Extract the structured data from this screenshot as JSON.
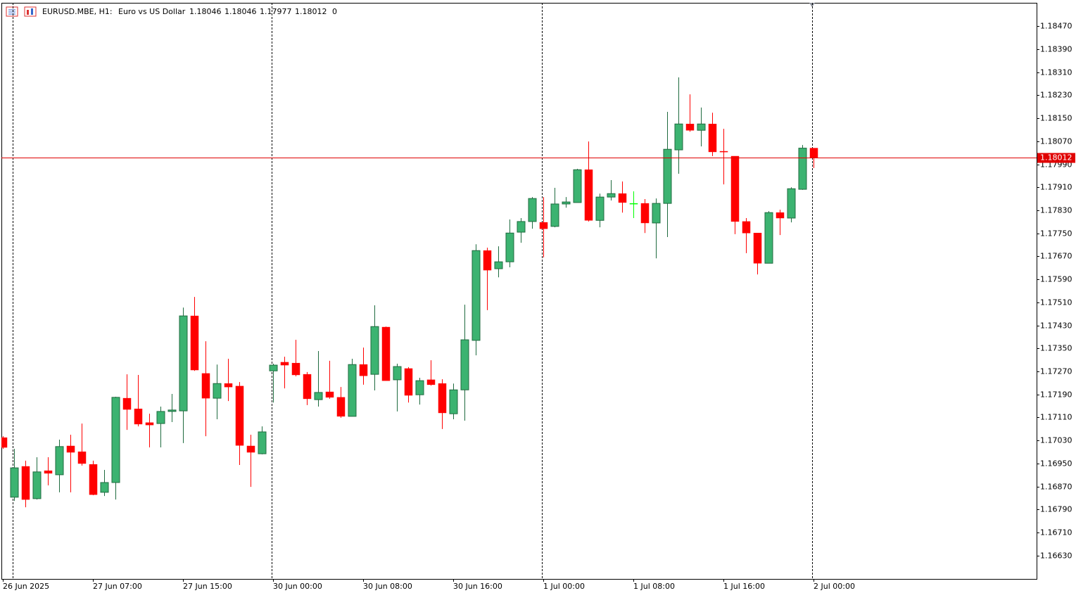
{
  "chart_data": {
    "type": "candlestick",
    "symbol": "EURUSD.MBE, H1:",
    "description": "Euro vs US Dollar",
    "info_extra": "0",
    "categories": [
      "26 Jun 2025",
      null,
      null,
      null,
      null,
      null,
      null,
      null,
      "27 Jun 07:00",
      null,
      null,
      null,
      null,
      null,
      null,
      null,
      "27 Jun 15:00",
      null,
      null,
      null,
      null,
      null,
      null,
      null,
      "30 Jun 00:00",
      null,
      null,
      null,
      null,
      null,
      null,
      null,
      "30 Jun 08:00",
      null,
      null,
      null,
      null,
      null,
      null,
      null,
      "30 Jun 16:00",
      null,
      null,
      null,
      null,
      null,
      null,
      null,
      "1 Jul 00:00",
      null,
      null,
      null,
      null,
      null,
      null,
      null,
      "1 Jul 08:00",
      null,
      null,
      null,
      null,
      null,
      null,
      null,
      "1 Jul 16:00",
      null,
      null,
      null,
      null,
      null,
      null,
      null,
      "2 Jul 00:00"
    ],
    "open": [
      1.1704,
      1.16833,
      1.1694,
      1.16828,
      1.16925,
      1.16911,
      1.17011,
      1.16991,
      1.16947,
      1.1685,
      1.16884,
      1.17177,
      1.1714,
      1.17092,
      1.17089,
      1.17131,
      1.17133,
      1.17463,
      1.17263,
      1.17177,
      1.17228,
      1.17219,
      1.17011,
      1.16984,
      1.17272,
      1.17302,
      1.17299,
      1.1726,
      1.17172,
      1.17199,
      1.1718,
      1.17114,
      1.17294,
      1.1726,
      1.17424,
      1.17241,
      1.1728,
      1.17189,
      1.17241,
      1.17228,
      1.17123,
      1.17206,
      1.17378,
      1.1769,
      1.17627,
      1.17651,
      1.17754,
      1.17791,
      1.17788,
      1.17774,
      1.17852,
      1.17857,
      1.17971,
      1.17795,
      1.17876,
      1.17888,
      1.17854,
      1.17854,
      1.17786,
      1.17854,
      1.1804,
      1.1813,
      1.18108,
      1.1813,
      1.18035,
      1.18018,
      1.17791,
      1.17751,
      1.17646,
      1.17822,
      1.17803,
      1.17903,
      1.18046
    ],
    "high": [
      1.17045,
      1.17001,
      1.1696,
      1.16972,
      1.16972,
      1.17033,
      1.1705,
      1.17089,
      1.1696,
      1.16928,
      1.17182,
      1.1726,
      1.17258,
      1.17123,
      1.17148,
      1.17192,
      1.17492,
      1.17529,
      1.17375,
      1.17294,
      1.17314,
      1.17233,
      1.1705,
      1.17079,
      1.17297,
      1.17321,
      1.1738,
      1.17268,
      1.17341,
      1.17307,
      1.17216,
      1.17314,
      1.17353,
      1.175,
      1.17426,
      1.17297,
      1.17285,
      1.17248,
      1.17309,
      1.17243,
      1.17228,
      1.17502,
      1.17712,
      1.177,
      1.17705,
      1.17798,
      1.17803,
      1.17876,
      1.17876,
      1.17908,
      1.17876,
      1.17974,
      1.18069,
      1.17888,
      1.17935,
      1.1793,
      1.17896,
      1.17869,
      1.17871,
      1.18172,
      1.18292,
      1.18233,
      1.18187,
      1.18169,
      1.18113,
      1.18018,
      1.17803,
      1.17751,
      1.17827,
      1.17832,
      1.1791,
      1.18057,
      1.18046
    ],
    "low": [
      1.17001,
      1.1682,
      1.16798,
      1.16825,
      1.16874,
      1.1685,
      1.1685,
      1.16943,
      1.1684,
      1.16837,
      1.16825,
      1.17067,
      1.17079,
      1.17006,
      1.17006,
      1.17094,
      1.17021,
      1.17272,
      1.17045,
      1.17104,
      1.17167,
      1.16945,
      1.16869,
      1.16982,
      1.17162,
      1.17211,
      1.17253,
      1.17153,
      1.17148,
      1.17175,
      1.17109,
      1.17114,
      1.17224,
      1.17204,
      1.17238,
      1.17131,
      1.17162,
      1.17155,
      1.17221,
      1.1707,
      1.17104,
      1.17099,
      1.17326,
      1.17483,
      1.17597,
      1.17632,
      1.17717,
      1.17766,
      1.17666,
      1.17771,
      1.17839,
      1.17857,
      1.17791,
      1.17771,
      1.17864,
      1.17822,
      1.17803,
      1.17751,
      1.17663,
      1.17737,
      1.17957,
      1.18103,
      1.18052,
      1.18018,
      1.1792,
      1.17747,
      1.17681,
      1.17607,
      1.17646,
      1.17744,
      1.17788,
      1.17901,
      1.17977
    ],
    "close": [
      1.17006,
      1.16935,
      1.16825,
      1.16921,
      1.16916,
      1.17009,
      1.16989,
      1.1695,
      1.16842,
      1.16884,
      1.1718,
      1.17138,
      1.17087,
      1.17084,
      1.17131,
      1.17136,
      1.17463,
      1.17275,
      1.17177,
      1.17228,
      1.17216,
      1.17013,
      1.16989,
      1.1706,
      1.17292,
      1.17292,
      1.17258,
      1.17175,
      1.17197,
      1.1718,
      1.17114,
      1.17294,
      1.17255,
      1.17426,
      1.17238,
      1.17287,
      1.17187,
      1.17238,
      1.17224,
      1.17126,
      1.17206,
      1.1738,
      1.1769,
      1.17622,
      1.17651,
      1.17751,
      1.17791,
      1.17871,
      1.17766,
      1.17852,
      1.17859,
      1.17971,
      1.17795,
      1.17876,
      1.17888,
      1.17857,
      1.17854,
      1.17786,
      1.17854,
      1.18042,
      1.1813,
      1.18108,
      1.1813,
      1.18033,
      1.18033,
      1.17791,
      1.17751,
      1.17646,
      1.17822,
      1.17803,
      1.17905,
      1.18046,
      1.18012
    ],
    "up_color": "#3cb371",
    "up_border": "#1f6b3f",
    "down_color": "#ff0000",
    "doji_color": "#00ff00",
    "price_line_color": "#e00000",
    "ylim": [
      1.16549,
      1.18551
    ],
    "yticks": [
      {
        "value": 1.1847,
        "label": "1.18470"
      },
      {
        "value": 1.1839,
        "label": "1.18390"
      },
      {
        "value": 1.1831,
        "label": "1.18310"
      },
      {
        "value": 1.1823,
        "label": "1.18230"
      },
      {
        "value": 1.1815,
        "label": "1.18150"
      },
      {
        "value": 1.1807,
        "label": "1.18070"
      },
      {
        "value": 1.1799,
        "label": "1.17990"
      },
      {
        "value": 1.1791,
        "label": "1.17910"
      },
      {
        "value": 1.1783,
        "label": "1.17830"
      },
      {
        "value": 1.1775,
        "label": "1.17750"
      },
      {
        "value": 1.1767,
        "label": "1.17670"
      },
      {
        "value": 1.1759,
        "label": "1.17590"
      },
      {
        "value": 1.1751,
        "label": "1.17510"
      },
      {
        "value": 1.1743,
        "label": "1.17430"
      },
      {
        "value": 1.1735,
        "label": "1.17350"
      },
      {
        "value": 1.1727,
        "label": "1.17270"
      },
      {
        "value": 1.1719,
        "label": "1.17190"
      },
      {
        "value": 1.1711,
        "label": "1.17110"
      },
      {
        "value": 1.1703,
        "label": "1.17030"
      },
      {
        "value": 1.1695,
        "label": "1.16950"
      },
      {
        "value": 1.1687,
        "label": "1.16870"
      },
      {
        "value": 1.1679,
        "label": "1.16790"
      },
      {
        "value": 1.1671,
        "label": "1.16710"
      },
      {
        "value": 1.1663,
        "label": "1.16630"
      }
    ],
    "grid": false
  }
}
